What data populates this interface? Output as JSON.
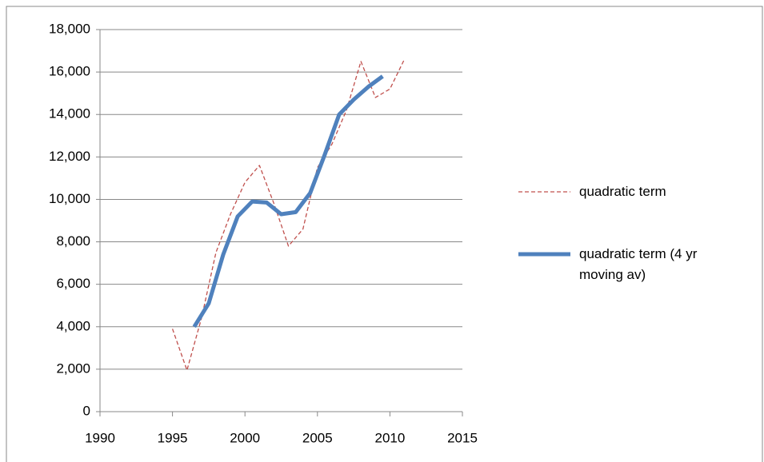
{
  "chart_data": {
    "type": "line",
    "series": [
      {
        "name": "quadratic term",
        "color": "#c0504d",
        "dashed": true,
        "x": [
          1995,
          1996,
          1997,
          1998,
          1999,
          2000,
          2001,
          2002,
          2003,
          2004,
          2005,
          2006,
          2007,
          2008,
          2009,
          2010,
          2011
        ],
        "values": [
          3900,
          1950,
          4400,
          7500,
          9300,
          10800,
          11600,
          9800,
          7800,
          8600,
          11500,
          12600,
          14200,
          16500,
          14800,
          15200,
          16600
        ]
      },
      {
        "name": "quadratic term (4 yr moving av)",
        "color": "#4f81bd",
        "dashed": false,
        "x": [
          1996.5,
          1997.5,
          1998.5,
          1999.5,
          2000.5,
          2001.5,
          2002.5,
          2003.5,
          2004.5,
          2005.5,
          2006.5,
          2007.5,
          2008.5,
          2009.5
        ],
        "values": [
          4000,
          5100,
          7400,
          9200,
          9900,
          9850,
          9300,
          9400,
          10300,
          12100,
          14000,
          14700,
          15300,
          15800
        ]
      }
    ],
    "xlim": [
      1990,
      2015
    ],
    "xticks": [
      1990,
      1995,
      2000,
      2005,
      2010,
      2015
    ],
    "ylim": [
      0,
      18000
    ],
    "yticks": [
      0,
      {
        "value": 2000,
        "label": "2,000"
      },
      {
        "value": 4000,
        "label": "4,000"
      },
      {
        "value": 6000,
        "label": "6,000"
      },
      {
        "value": 8000,
        "label": "8,000"
      },
      {
        "value": 10000,
        "label": "10,000"
      },
      {
        "value": 12000,
        "label": "12,000"
      },
      {
        "value": 14000,
        "label": "14,000"
      },
      {
        "value": 16000,
        "label": "16,000"
      },
      {
        "value": 18000,
        "label": "18,000"
      }
    ],
    "grid": true,
    "legend": "right"
  }
}
